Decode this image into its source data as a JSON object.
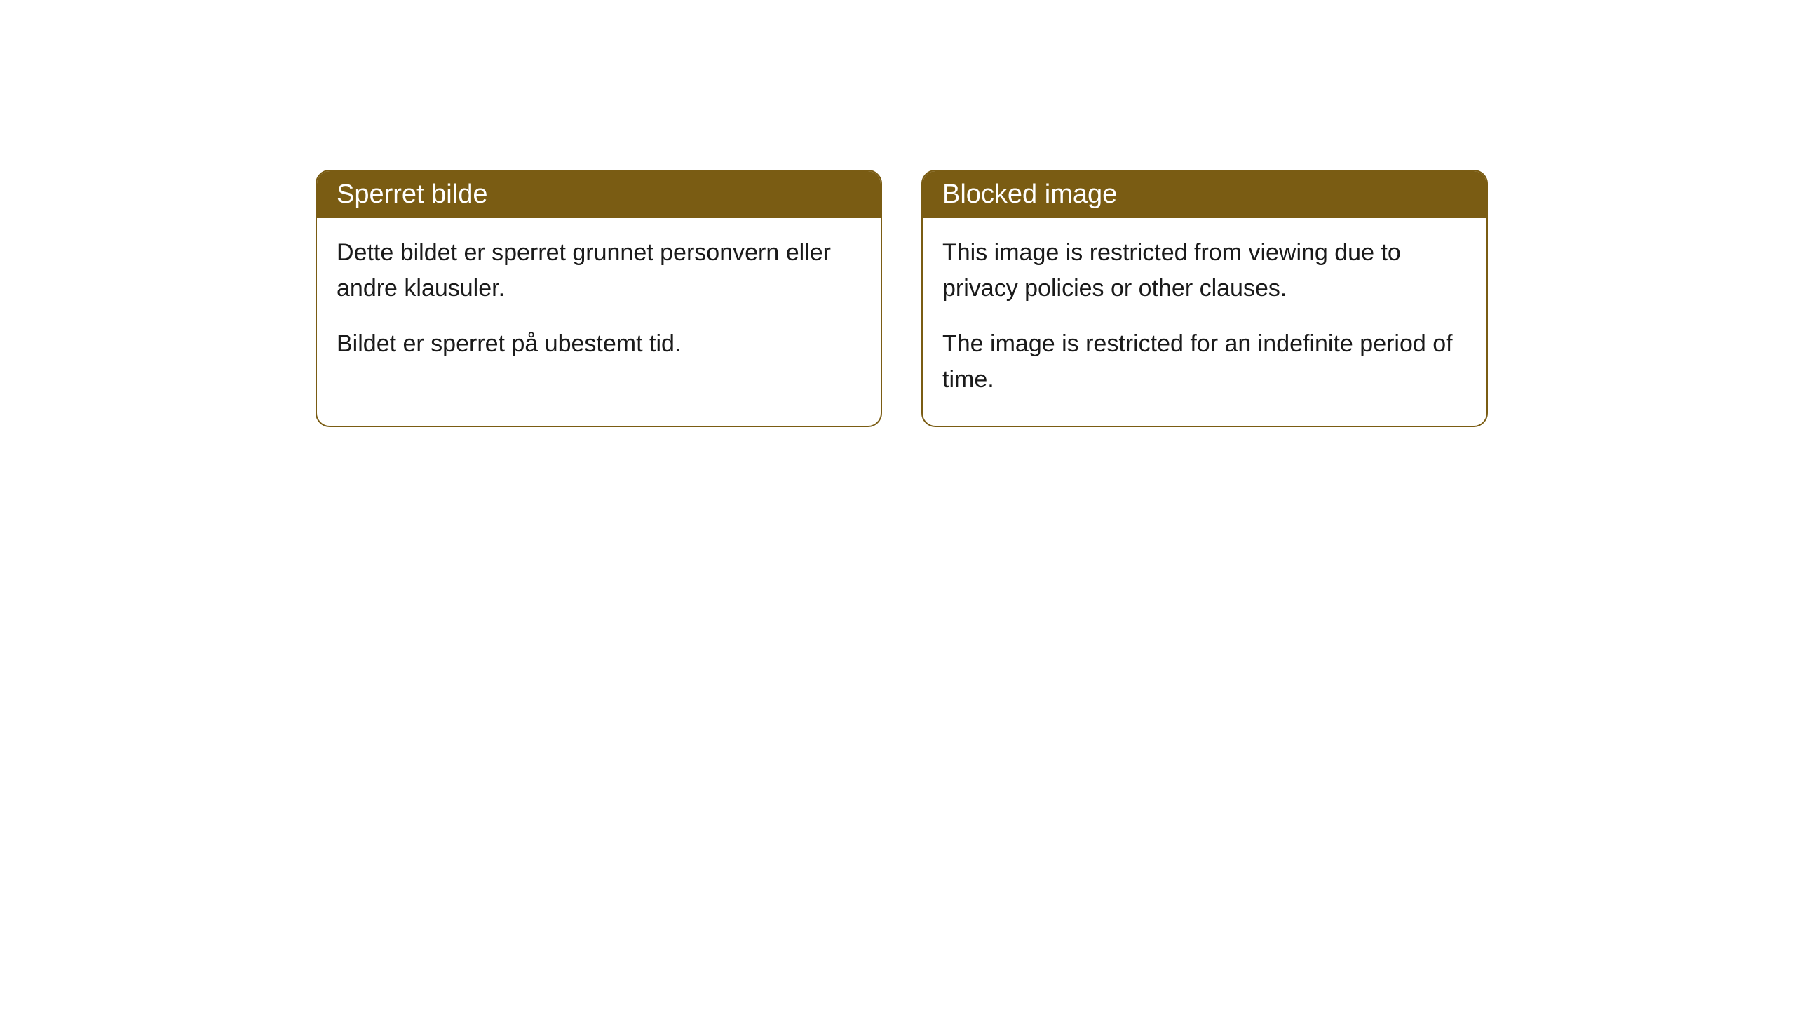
{
  "cards": [
    {
      "title": "Sperret bilde",
      "paragraph1": "Dette bildet er sperret grunnet personvern eller andre klausuler.",
      "paragraph2": "Bildet er sperret på ubestemt tid."
    },
    {
      "title": "Blocked image",
      "paragraph1": "This image is restricted from viewing due to privacy policies or other clauses.",
      "paragraph2": "The image is restricted for an indefinite period of time."
    }
  ],
  "styling": {
    "header_background_color": "#7a5c13",
    "header_text_color": "#ffffff",
    "border_color": "#7a5c13",
    "body_background_color": "#ffffff",
    "body_text_color": "#1a1a1a",
    "border_radius": 20,
    "header_fontsize": 38,
    "body_fontsize": 34
  }
}
